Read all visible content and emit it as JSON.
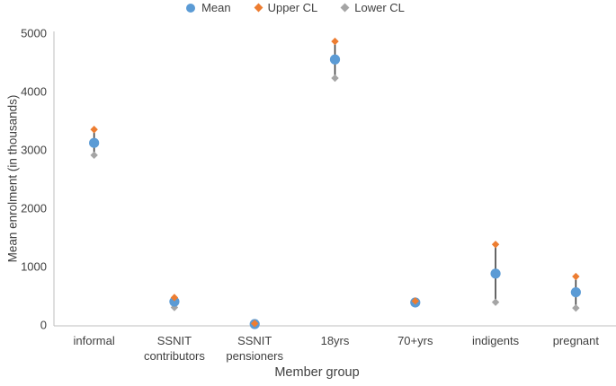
{
  "chart_data": {
    "type": "scatter",
    "title": "",
    "xlabel": "Member group",
    "ylabel": "Mean enrolment (in thousands)",
    "categories": [
      "informal",
      "SSNIT contributors",
      "SSNIT pensioners",
      "18yrs",
      "70+yrs",
      "indigents",
      "pregnant"
    ],
    "series": [
      {
        "name": "Mean",
        "marker": "circle",
        "color": "#5B9BD5",
        "values": [
          3120,
          400,
          15,
          4550,
          385,
          880,
          560
        ]
      },
      {
        "name": "Upper CL",
        "marker": "diamond",
        "color": "#ED7D31",
        "values": [
          3350,
          470,
          25,
          4860,
          410,
          1380,
          830
        ]
      },
      {
        "name": "Lower CL",
        "marker": "diamond",
        "color": "#A5A5A5",
        "values": [
          2910,
          300,
          5,
          4230,
          365,
          390,
          290
        ]
      }
    ],
    "ylim": [
      0,
      5000
    ],
    "yticks": [
      0,
      1000,
      2000,
      3000,
      4000,
      5000
    ],
    "grid": false,
    "legend_position": "top",
    "error_bar_color": "#404040",
    "axis_line_color": "#BFBFBF",
    "text_color": "#404040"
  }
}
